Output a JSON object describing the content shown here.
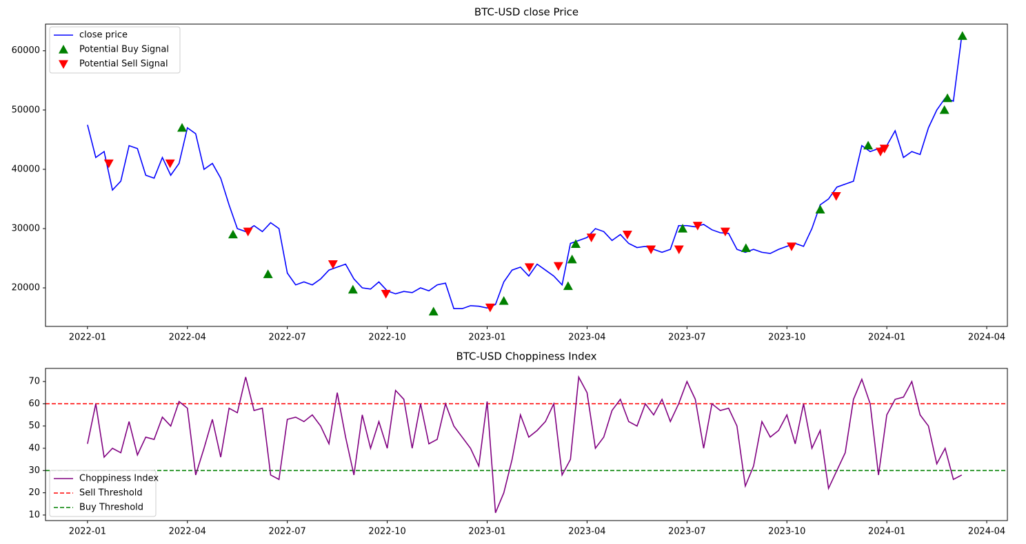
{
  "chart_data": [
    {
      "type": "line",
      "title": "BTC-USD close Price",
      "legend": "upper left",
      "x": [
        0,
        0.25,
        0.5,
        0.75,
        1,
        1.25,
        1.5,
        1.75,
        2,
        2.25,
        2.5,
        2.75,
        3,
        3.25,
        3.5,
        3.75,
        4,
        4.25,
        4.5,
        4.75,
        5,
        5.25,
        5.5,
        5.75,
        6,
        6.25,
        6.5,
        6.75,
        7,
        7.25,
        7.5,
        7.75,
        8,
        8.25,
        8.5,
        8.75,
        9,
        9.25,
        9.5,
        9.75,
        10,
        10.25,
        10.5,
        10.75,
        11,
        11.25,
        11.5,
        11.75,
        12,
        12.25,
        12.5,
        12.75,
        13,
        13.25,
        13.5,
        13.75,
        14,
        14.25,
        14.5,
        14.75,
        15,
        15.25,
        15.5,
        15.75,
        16,
        16.25,
        16.5,
        16.75,
        17,
        17.25,
        17.5,
        17.75,
        18,
        18.25,
        18.5,
        18.75,
        19,
        19.25,
        19.5,
        19.75,
        20,
        20.25,
        20.5,
        20.75,
        21,
        21.25,
        21.5,
        21.75,
        22,
        22.25,
        22.5,
        22.75,
        23,
        23.25,
        23.5,
        23.75,
        24,
        24.25,
        24.5,
        24.75,
        25,
        25.25,
        25.5,
        25.75,
        26,
        26.25
      ],
      "series": [
        {
          "name": "close price",
          "color": "#0000ff",
          "marker": "line",
          "values": [
            47500,
            42000,
            43000,
            36500,
            38000,
            44000,
            43500,
            39000,
            38500,
            42000,
            39000,
            41000,
            47000,
            46000,
            40000,
            41000,
            38500,
            34000,
            30000,
            29500,
            30500,
            29500,
            31000,
            30000,
            22500,
            20500,
            21000,
            20500,
            21500,
            23000,
            23500,
            24000,
            21500,
            20000,
            19800,
            21000,
            19500,
            19000,
            19400,
            19200,
            20000,
            19500,
            20500,
            20800,
            16500,
            16500,
            17000,
            16900,
            16600,
            17200,
            21000,
            23000,
            23500,
            22000,
            24000,
            23000,
            22000,
            20500,
            27500,
            28000,
            28500,
            30000,
            29500,
            28000,
            29000,
            27500,
            26800,
            27000,
            26500,
            26000,
            26500,
            30500,
            30500,
            30300,
            30700,
            29800,
            29300,
            29200,
            26500,
            26000,
            26500,
            26000,
            25800,
            26500,
            27000,
            27500,
            27000,
            30000,
            34000,
            35000,
            37000,
            37500,
            38000,
            44000,
            43000,
            43500,
            44000,
            46500,
            42000,
            43000,
            42500,
            47000,
            50000,
            52000,
            51500,
            62500
          ]
        },
        {
          "name": "Potential Buy Signal",
          "color": "#008000",
          "marker": "^",
          "x": [
            2.84,
            4.37,
            5.42,
            7.97,
            10.39,
            12.5,
            14.43,
            14.55,
            14.66,
            17.87,
            19.77,
            22.0,
            23.44,
            25.73,
            25.82,
            26.27
          ],
          "values": [
            47000,
            29000,
            22300,
            19700,
            16000,
            17800,
            20300,
            24800,
            27400,
            30000,
            26700,
            33200,
            44000,
            50000,
            52000,
            62500
          ]
        },
        {
          "name": "Potential Sell Signal",
          "color": "#ff0000",
          "marker": "v",
          "x": [
            0.64,
            2.48,
            4.82,
            7.37,
            8.96,
            12.09,
            13.27,
            14.14,
            15.13,
            16.21,
            16.92,
            17.76,
            18.32,
            19.15,
            21.14,
            22.48,
            23.81,
            23.93
          ],
          "values": [
            41000,
            41000,
            29500,
            24000,
            19000,
            16700,
            23500,
            23700,
            28500,
            29000,
            26500,
            26500,
            30500,
            29500,
            27000,
            35500,
            43000,
            43500
          ]
        }
      ],
      "xlim": [
        -1.26,
        27.62
      ],
      "xticks": [
        {
          "value": 0,
          "label": "2022-01"
        },
        {
          "value": 3,
          "label": "2022-04"
        },
        {
          "value": 6,
          "label": "2022-07"
        },
        {
          "value": 9,
          "label": "2022-10"
        },
        {
          "value": 12,
          "label": "2023-01"
        },
        {
          "value": 15,
          "label": "2023-04"
        },
        {
          "value": 18,
          "label": "2023-07"
        },
        {
          "value": 21,
          "label": "2023-10"
        },
        {
          "value": 24,
          "label": "2024-01"
        },
        {
          "value": 27,
          "label": "2024-04"
        }
      ],
      "ylim": [
        13500,
        64500
      ],
      "yticks": [
        20000,
        30000,
        40000,
        50000,
        60000
      ]
    },
    {
      "type": "line",
      "title": "BTC-USD Choppiness Index",
      "legend": "lower left",
      "x": [
        0,
        0.25,
        0.5,
        0.75,
        1,
        1.25,
        1.5,
        1.75,
        2,
        2.25,
        2.5,
        2.75,
        3,
        3.25,
        3.5,
        3.75,
        4,
        4.25,
        4.5,
        4.75,
        5,
        5.25,
        5.5,
        5.75,
        6,
        6.25,
        6.5,
        6.75,
        7,
        7.25,
        7.5,
        7.75,
        8,
        8.25,
        8.5,
        8.75,
        9,
        9.25,
        9.5,
        9.75,
        10,
        10.25,
        10.5,
        10.75,
        11,
        11.25,
        11.5,
        11.75,
        12,
        12.25,
        12.5,
        12.75,
        13,
        13.25,
        13.5,
        13.75,
        14,
        14.25,
        14.5,
        14.75,
        15,
        15.25,
        15.5,
        15.75,
        16,
        16.25,
        16.5,
        16.75,
        17,
        17.25,
        17.5,
        17.75,
        18,
        18.25,
        18.5,
        18.75,
        19,
        19.25,
        19.5,
        19.75,
        20,
        20.25,
        20.5,
        20.75,
        21,
        21.25,
        21.5,
        21.75,
        22,
        22.25,
        22.5,
        22.75,
        23,
        23.25,
        23.5,
        23.75,
        24,
        24.25,
        24.5,
        24.75,
        25,
        25.25,
        25.5,
        25.75,
        26,
        26.25
      ],
      "series": [
        {
          "name": "Choppiness Index",
          "color": "#800080",
          "marker": "line",
          "values": [
            42,
            60,
            36,
            40,
            38,
            52,
            37,
            45,
            44,
            54,
            50,
            61,
            58,
            28,
            40,
            53,
            36,
            58,
            56,
            72,
            57,
            58,
            28,
            26,
            53,
            54,
            52,
            55,
            50,
            42,
            65,
            45,
            28,
            55,
            40,
            52,
            40,
            66,
            62,
            40,
            60,
            42,
            44,
            60,
            50,
            45,
            40,
            32,
            61,
            11,
            20,
            35,
            55,
            45,
            48,
            52,
            60,
            28,
            35,
            72,
            65,
            40,
            45,
            57,
            62,
            52,
            50,
            60,
            55,
            62,
            52,
            60,
            70,
            62,
            40,
            60,
            57,
            58,
            50,
            23,
            32,
            52,
            45,
            48,
            55,
            42,
            60,
            40,
            48,
            22,
            30,
            38,
            62,
            71,
            60,
            28,
            55,
            62,
            63,
            70,
            55,
            50,
            33,
            40,
            26,
            28
          ]
        }
      ],
      "thresholds": [
        {
          "name": "Sell Threshold",
          "color": "#ff0000",
          "value": 60
        },
        {
          "name": "Buy Threshold",
          "color": "#008000",
          "value": 30
        }
      ],
      "xlim": [
        -1.26,
        27.62
      ],
      "xticks": [
        {
          "value": 0,
          "label": "2022-01"
        },
        {
          "value": 3,
          "label": "2022-04"
        },
        {
          "value": 6,
          "label": "2022-07"
        },
        {
          "value": 9,
          "label": "2022-10"
        },
        {
          "value": 12,
          "label": "2023-01"
        },
        {
          "value": 15,
          "label": "2023-04"
        },
        {
          "value": 18,
          "label": "2023-07"
        },
        {
          "value": 21,
          "label": "2023-10"
        },
        {
          "value": 24,
          "label": "2024-01"
        },
        {
          "value": 27,
          "label": "2024-04"
        }
      ],
      "ylim": [
        7.5,
        75.9
      ],
      "yticks": [
        10,
        20,
        30,
        40,
        50,
        60,
        70
      ]
    }
  ]
}
